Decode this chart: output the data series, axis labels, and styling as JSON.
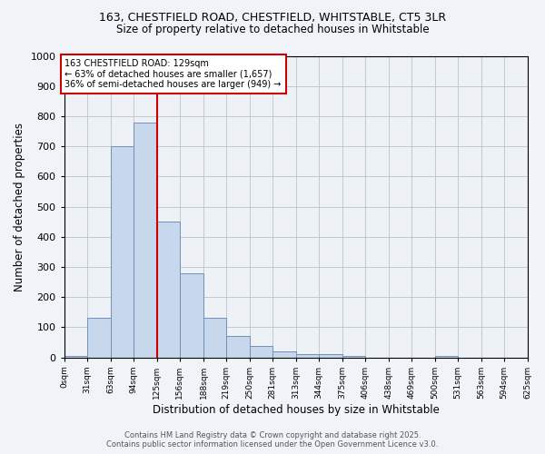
{
  "title1": "163, CHESTFIELD ROAD, CHESTFIELD, WHITSTABLE, CT5 3LR",
  "title2": "Size of property relative to detached houses in Whitstable",
  "xlabel": "Distribution of detached houses by size in Whitstable",
  "ylabel": "Number of detached properties",
  "bin_edges": [
    0,
    31,
    63,
    94,
    125,
    156,
    188,
    219,
    250,
    281,
    313,
    344,
    375,
    406,
    438,
    469,
    500,
    531,
    563,
    594,
    625
  ],
  "bar_heights": [
    5,
    130,
    700,
    780,
    450,
    280,
    130,
    70,
    38,
    20,
    12,
    10,
    5,
    0,
    0,
    0,
    5,
    0,
    0,
    0
  ],
  "bar_color": "#c8d8ec",
  "bar_edge_color": "#7090b8",
  "property_line_x": 125,
  "property_line_color": "#cc0000",
  "annotation_line1": "163 CHESTFIELD ROAD: 129sqm",
  "annotation_line2": "← 63% of detached houses are smaller (1,657)",
  "annotation_line3": "36% of semi-detached houses are larger (949) →",
  "annotation_box_color": "#cc0000",
  "ylim": [
    0,
    1000
  ],
  "yticks": [
    0,
    100,
    200,
    300,
    400,
    500,
    600,
    700,
    800,
    900,
    1000
  ],
  "footer1": "Contains HM Land Registry data © Crown copyright and database right 2025.",
  "footer2": "Contains public sector information licensed under the Open Government Licence v3.0.",
  "bg_color": "#eef2f7",
  "grid_color": "#b8c4d0",
  "fig_bg_color": "#f0f4f9"
}
